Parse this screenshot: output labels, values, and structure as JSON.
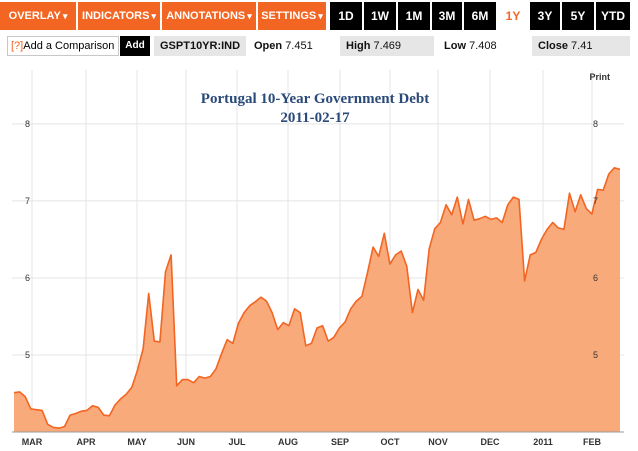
{
  "toolbar": {
    "menus": [
      {
        "label": "OVERLAY",
        "caret": "▾"
      },
      {
        "label": "INDICATORS",
        "caret": "▾"
      },
      {
        "label": "ANNOTATIONS",
        "caret": "▾"
      },
      {
        "label": "SETTINGS",
        "caret": "▾"
      }
    ],
    "ranges": [
      "1D",
      "1W",
      "1M",
      "3M",
      "6M",
      "1Y",
      "3Y",
      "5Y",
      "YTD"
    ],
    "active_range": "1Y",
    "accent_color": "#f26522"
  },
  "compare": {
    "help": "[?]",
    "label": "Add a Comparison",
    "add_button": "Add"
  },
  "quote": {
    "ticker": "GSPT10YR:IND",
    "open_label": "Open",
    "open_value": "7.451",
    "high_label": "High",
    "high_value": "7.469",
    "low_label": "Low",
    "low_value": "7.408",
    "close_label": "Close",
    "close_value": "7.41"
  },
  "chart": {
    "print_label": "Print"
  },
  "chart_data": {
    "type": "area",
    "title": "Portugal 10-Year Government Debt",
    "subtitle": "2011-02-17",
    "ylim": [
      4.0,
      8.7
    ],
    "yticks": [
      5,
      6,
      7,
      8
    ],
    "ytick_labels": [
      "5",
      "6",
      "7",
      "8"
    ],
    "x_tick_labels": [
      "MAR",
      "APR",
      "MAY",
      "JUN",
      "JUL",
      "AUG",
      "SEP",
      "OCT",
      "NOV",
      "DEC",
      "2011",
      "FEB"
    ],
    "grid": true,
    "fill_color": "#f8aa7a",
    "line_color": "#f26522",
    "series": [
      {
        "values": [
          4.51,
          4.52,
          4.46,
          4.3,
          4.29,
          4.28,
          4.1,
          4.06,
          4.05,
          4.07,
          4.22,
          4.24,
          4.27,
          4.28,
          4.34,
          4.32,
          4.22,
          4.21,
          4.35,
          4.43,
          4.49,
          4.58,
          4.8,
          5.08,
          5.8,
          5.18,
          5.17,
          6.08,
          6.3,
          4.6,
          4.68,
          4.68,
          4.64,
          4.72,
          4.7,
          4.72,
          4.82,
          5.02,
          5.2,
          5.15,
          5.41,
          5.55,
          5.64,
          5.69,
          5.75,
          5.7,
          5.55,
          5.33,
          5.42,
          5.38,
          5.6,
          5.55,
          5.12,
          5.15,
          5.35,
          5.38,
          5.18,
          5.23,
          5.35,
          5.43,
          5.6,
          5.7,
          5.76,
          6.07,
          6.4,
          6.28,
          6.58,
          6.18,
          6.3,
          6.35,
          6.15,
          5.55,
          5.85,
          5.71,
          6.38,
          6.64,
          6.72,
          6.95,
          6.82,
          7.05,
          6.7,
          7.02,
          6.75,
          6.77,
          6.8,
          6.76,
          6.78,
          6.72,
          6.95,
          7.05,
          7.02,
          5.96,
          6.3,
          6.33,
          6.5,
          6.63,
          6.72,
          6.65,
          6.63,
          7.1,
          6.86,
          7.08,
          6.9,
          6.83,
          7.15,
          7.14,
          7.35,
          7.43,
          7.41
        ]
      }
    ]
  }
}
